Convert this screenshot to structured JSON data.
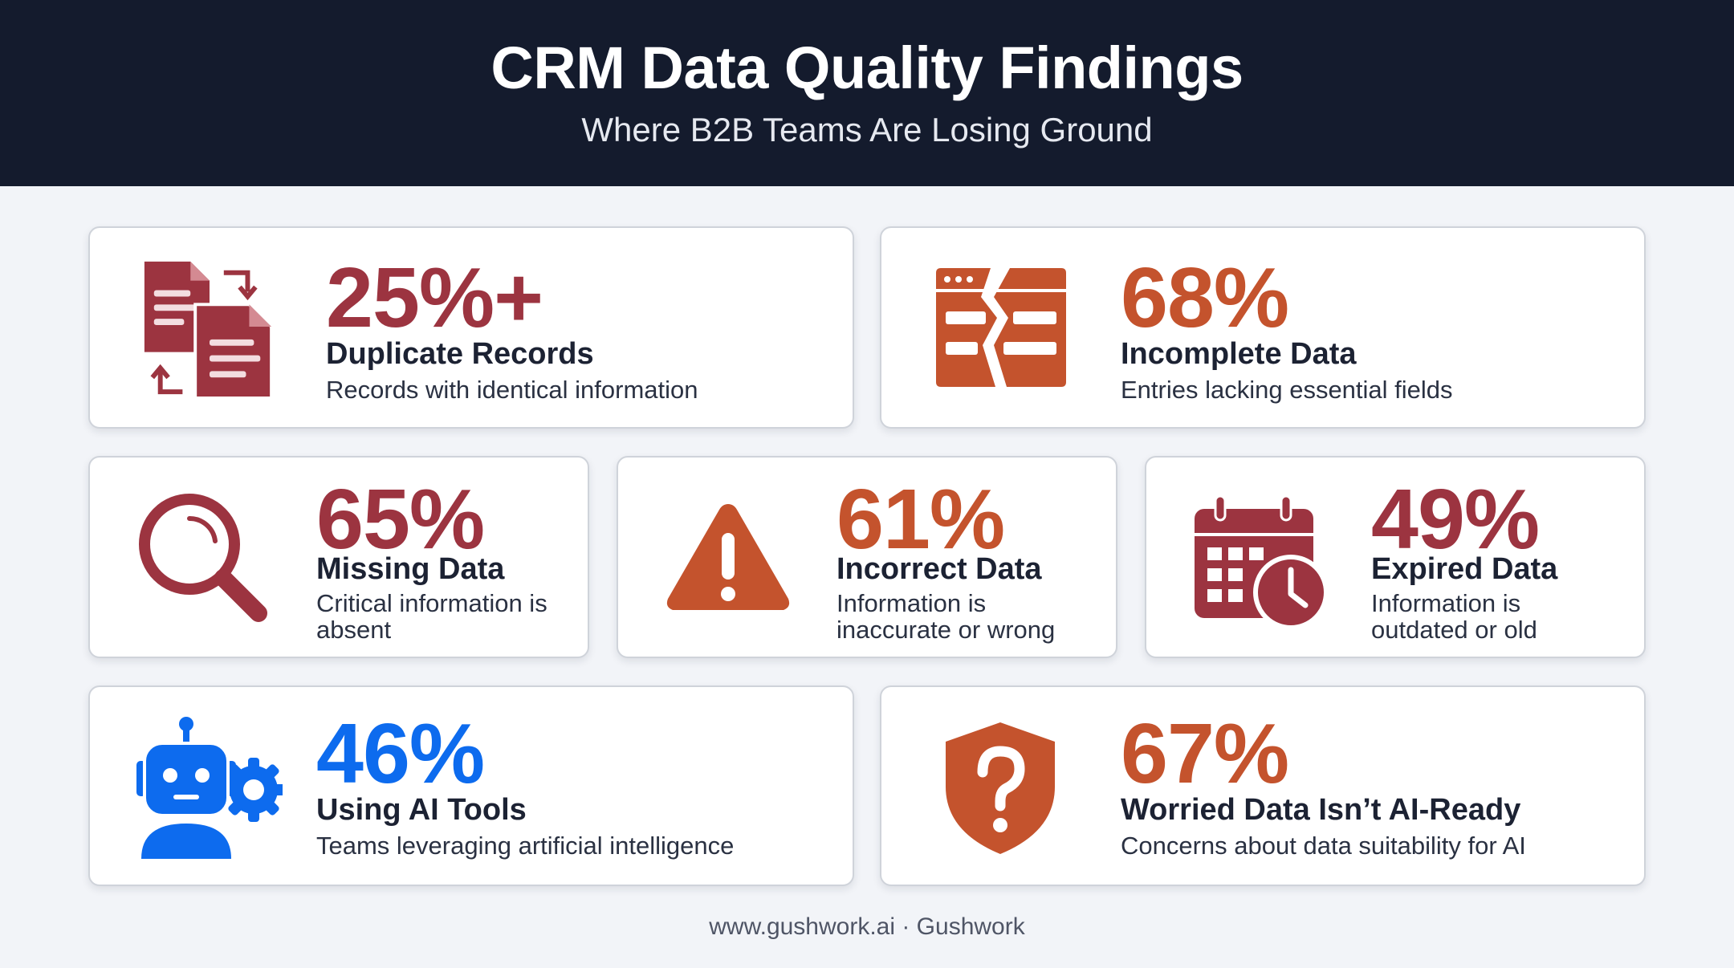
{
  "header": {
    "title": "CRM Data Quality Findings",
    "subtitle": "Where B2B Teams Are Losing Ground"
  },
  "colors": {
    "maroon": "#9c3440",
    "orange": "#c4532d",
    "blue": "#0d6bee",
    "header_bg": "#141b2d"
  },
  "cards": [
    {
      "stat": "25%+",
      "label": "Duplicate Records",
      "desc": "Records with identical information",
      "icon": "duplicate-documents-icon",
      "color": "#9c3440"
    },
    {
      "stat": "68%",
      "label": "Incomplete Data",
      "desc": "Entries lacking essential fields",
      "icon": "broken-window-icon",
      "color": "#c4532d"
    },
    {
      "stat": "65%",
      "label": "Missing Data",
      "desc": "Critical information is absent",
      "icon": "magnifying-glass-icon",
      "color": "#9c3440"
    },
    {
      "stat": "61%",
      "label": "Incorrect Data",
      "desc": "Information is inaccurate or wrong",
      "icon": "warning-triangle-icon",
      "color": "#c4532d"
    },
    {
      "stat": "49%",
      "label": "Expired Data",
      "desc": "Information is outdated or old",
      "icon": "calendar-clock-icon",
      "color": "#9c3440"
    },
    {
      "stat": "46%",
      "label": "Using AI Tools",
      "desc": "Teams leveraging artificial intelligence",
      "icon": "robot-gear-icon",
      "color": "#0d6bee"
    },
    {
      "stat": "67%",
      "label": "Worried Data Isn’t AI-Ready",
      "desc": "Concerns about data suitability for AI",
      "icon": "shield-question-icon",
      "color": "#c4532d"
    }
  ],
  "footer": "www.gushwork.ai · Gushwork"
}
